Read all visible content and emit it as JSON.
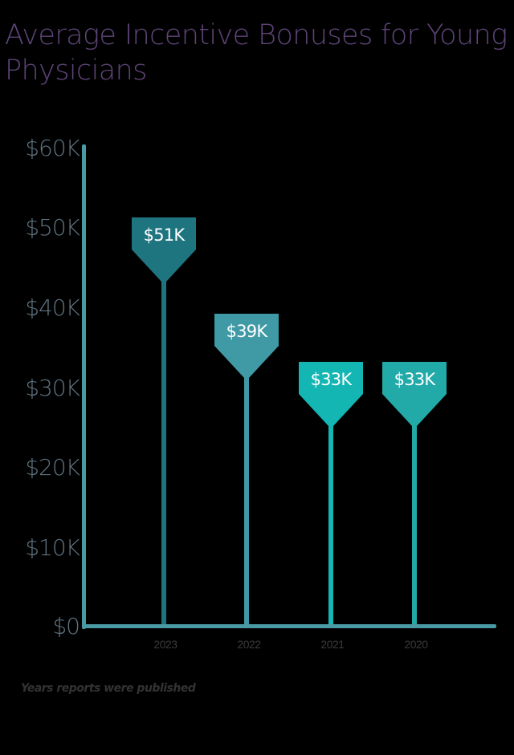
{
  "title": "Average Incentive Bonuses for Young Physicians",
  "chart_data": {
    "type": "bar",
    "style": "lollipop",
    "title": "Average Incentive Bonuses for Young Physicians",
    "xlabel": "Years reports were published",
    "ylabel": "",
    "categories": [
      "2023",
      "2022",
      "2021",
      "2020"
    ],
    "values": [
      51000,
      39000,
      33000,
      33000
    ],
    "value_labels": [
      "$51K",
      "$39K",
      "$33K",
      "$33K"
    ],
    "colors": [
      "#1e7580",
      "#3f9aa6",
      "#14b6b4",
      "#22aaa9"
    ],
    "ylim": [
      0,
      60000
    ],
    "yticks": [
      0,
      10000,
      20000,
      30000,
      40000,
      50000,
      60000
    ],
    "ytick_labels": [
      "$0",
      "$10K",
      "$20K",
      "$30K",
      "$40K",
      "$50K",
      "$60K"
    ],
    "grid": false,
    "legend": null
  },
  "axis": {
    "color": "#4a9aa5",
    "ytick_labels": [
      "$60K",
      "$50K",
      "$40K",
      "$30K",
      "$20K",
      "$10K",
      "$0"
    ]
  },
  "bars": [
    {
      "year": "2023",
      "label": "$51K",
      "value": 51000,
      "color": "#1e7580"
    },
    {
      "year": "2022",
      "label": "$39K",
      "value": 39000,
      "color": "#3f9aa6"
    },
    {
      "year": "2021",
      "label": "$33K",
      "value": 33000,
      "color": "#14b6b4"
    },
    {
      "year": "2020",
      "label": "$33K",
      "value": 33000,
      "color": "#22aaa9"
    }
  ],
  "xlabel": "Years reports were published"
}
